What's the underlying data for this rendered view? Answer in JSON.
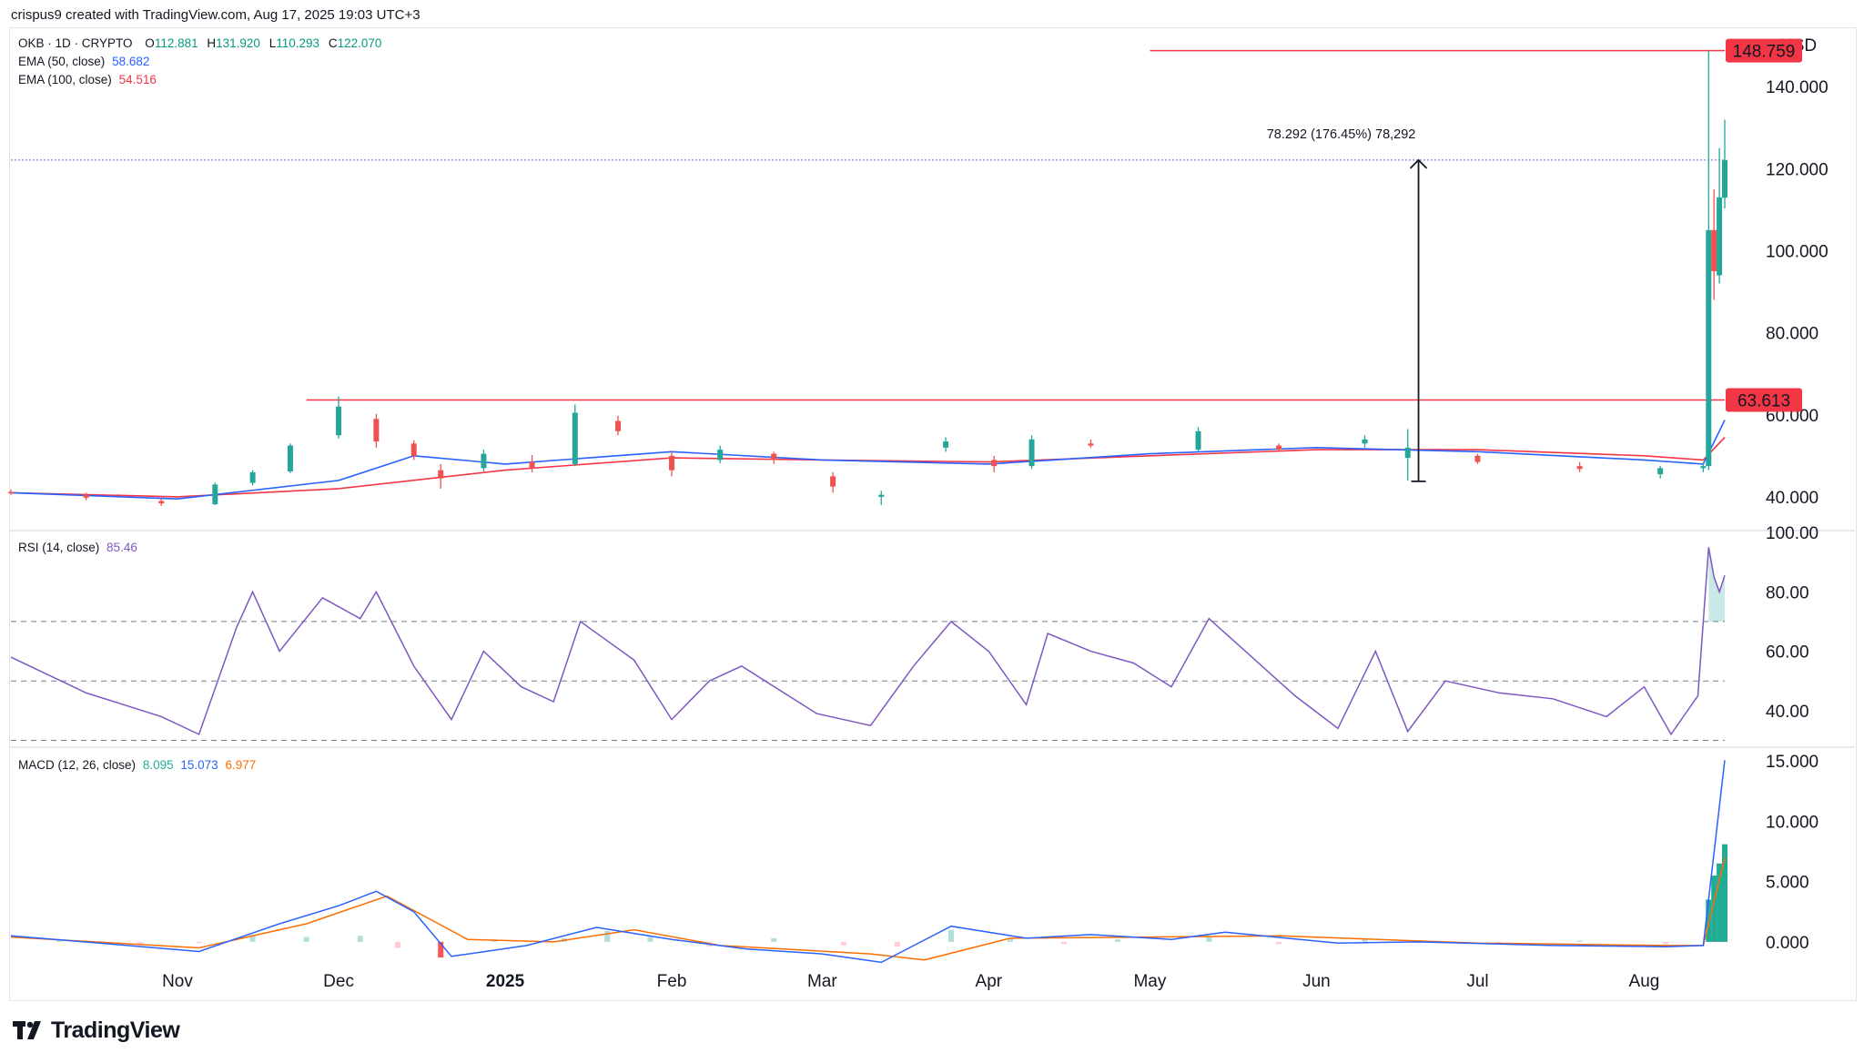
{
  "header": {
    "credit": "crispus9 created with TradingView.com, Aug 17, 2025 19:03 UTC+3"
  },
  "legend": {
    "symbol": "OKB · 1D · CRYPTO",
    "open_label": "O",
    "open": "112.881",
    "high_label": "H",
    "high": "131.920",
    "low_label": "L",
    "low": "110.293",
    "close_label": "C",
    "close": "122.070",
    "ema50_label": "EMA (50, close)",
    "ema50": "58.682",
    "ema100_label": "EMA (100, close)",
    "ema100": "54.516",
    "rsi_label": "RSI (14, close)",
    "rsi": "85.46",
    "macd_label": "MACD (12, 26, close)",
    "macd_hist": "8.095",
    "macd_line": "15.073",
    "macd_signal": "6.977"
  },
  "colors": {
    "up": "#26a69a",
    "down": "#ef5350",
    "ema50": "#2962ff",
    "ema100": "#f23645",
    "rsi": "#7e57c2",
    "macd_line": "#2962ff",
    "signal": "#ff6d00",
    "resistance": "#f23645",
    "badge": "#f23645"
  },
  "currency": "USD",
  "branding": "TradingView",
  "chart_data": [
    {
      "type": "candlestick",
      "title": "OKB · 1D · CRYPTO",
      "x_ticks": [
        "Nov",
        "Dec",
        "2025",
        "Feb",
        "Mar",
        "Apr",
        "May",
        "Jun",
        "Jul",
        "Aug"
      ],
      "y_ticks": [
        "40.000",
        "60.000",
        "80.000",
        "100.000",
        "120.000",
        "140.000"
      ],
      "ylim": [
        32,
        150
      ],
      "scale": "linear",
      "last_price": "122.070",
      "price_labels": [
        {
          "value": 148.759,
          "text": "148.759"
        },
        {
          "value": 63.613,
          "text": "63.613"
        }
      ],
      "horizontal_lines": [
        {
          "name": "resistance",
          "value": 63.613,
          "from": "Nov 25 2024"
        },
        {
          "name": "peak",
          "value": 148.759,
          "from": "May 1 2025"
        },
        {
          "name": "last-price",
          "value": 122.07,
          "style": "dotted"
        }
      ],
      "measure": {
        "text": "78.292 (176.45%) 78,292",
        "from_value": 43.78,
        "to_value": 122.07,
        "date": "Jun 20 2025"
      },
      "ohlc": [
        [
          "Oct 1 2024",
          41.2,
          41.8,
          40.5,
          41.0
        ],
        [
          "Oct 15 2024",
          40.5,
          41.0,
          39.2,
          39.8
        ],
        [
          "Oct 29 2024",
          39.0,
          39.6,
          37.8,
          38.4
        ],
        [
          "Nov 8 2024",
          38.2,
          43.5,
          38.0,
          43.0
        ],
        [
          "Nov 15 2024",
          43.4,
          46.5,
          42.8,
          46.0
        ],
        [
          "Nov 22 2024",
          46.2,
          53.0,
          45.8,
          52.5
        ],
        [
          "Dec 1 2024",
          55.0,
          64.5,
          54.2,
          62.0
        ],
        [
          "Dec 8 2024",
          59.0,
          60.2,
          52.0,
          53.5
        ],
        [
          "Dec 15 2024",
          53.0,
          53.8,
          49.0,
          50.0
        ],
        [
          "Dec 20 2024",
          46.5,
          48.0,
          42.0,
          44.5
        ],
        [
          "Dec 28 2024",
          47.0,
          51.5,
          46.2,
          50.5
        ],
        [
          "Jan 6 2025",
          48.5,
          50.2,
          46.0,
          47.0
        ],
        [
          "Jan 14 2025",
          48.0,
          62.5,
          47.5,
          60.5
        ],
        [
          "Jan 22 2025",
          58.5,
          59.8,
          55.0,
          56.0
        ],
        [
          "Feb 1 2025",
          50.0,
          51.0,
          45.0,
          46.5
        ],
        [
          "Feb 10 2025",
          49.0,
          52.5,
          48.2,
          51.5
        ],
        [
          "Feb 20 2025",
          50.5,
          51.0,
          48.0,
          49.0
        ],
        [
          "Mar 3 2025",
          45.0,
          46.0,
          41.0,
          42.5
        ],
        [
          "Mar 12 2025",
          40.0,
          41.5,
          38.0,
          40.5
        ],
        [
          "Mar 24 2025",
          52.0,
          54.5,
          51.0,
          53.5
        ],
        [
          "Apr 2 2025",
          49.0,
          50.0,
          46.0,
          47.5
        ],
        [
          "Apr 9 2025",
          47.5,
          55.0,
          46.8,
          54.0
        ],
        [
          "Apr 20 2025",
          53.0,
          54.0,
          52.0,
          52.5
        ],
        [
          "May 10 2025",
          51.5,
          57.0,
          51.0,
          56.0
        ],
        [
          "May 25 2025",
          52.5,
          53.0,
          51.0,
          51.5
        ],
        [
          "Jun 10 2025",
          53.0,
          55.0,
          52.0,
          54.0
        ],
        [
          "Jun 18 2025",
          49.5,
          56.5,
          44.0,
          52.0
        ],
        [
          "Jul 1 2025",
          50.0,
          50.5,
          48.0,
          48.5
        ],
        [
          "Jul 20 2025",
          47.5,
          48.5,
          46.0,
          46.8
        ],
        [
          "Aug 4 2025",
          45.5,
          47.5,
          44.5,
          47.0
        ],
        [
          "Aug 12 2025",
          47.0,
          48.5,
          46.0,
          47.5
        ],
        [
          "Aug 13 2025",
          47.5,
          148.8,
          46.5,
          105.0
        ],
        [
          "Aug 14 2025",
          105.0,
          115.0,
          88.0,
          95.0
        ],
        [
          "Aug 15 2025",
          94.0,
          125.0,
          92.0,
          113.0
        ],
        [
          "Aug 16 2025",
          112.9,
          131.9,
          110.3,
          122.1
        ]
      ],
      "series": [
        {
          "name": "EMA (50, close)",
          "values": [
            [
              "Oct 1 2024",
              41.0
            ],
            [
              "Nov 1 2024",
              39.5
            ],
            [
              "Dec 1 2024",
              44.0
            ],
            [
              "Dec 15 2024",
              50.0
            ],
            [
              "Jan 1 2025",
              48.0
            ],
            [
              "Feb 1 2025",
              51.0
            ],
            [
              "Mar 1 2025",
              49.0
            ],
            [
              "Apr 1 2025",
              48.0
            ],
            [
              "May 1 2025",
              50.5
            ],
            [
              "Jun 1 2025",
              52.0
            ],
            [
              "Jul 1 2025",
              51.0
            ],
            [
              "Aug 1 2025",
              49.0
            ],
            [
              "Aug 12 2025",
              48.0
            ],
            [
              "Aug 16 2025",
              58.7
            ]
          ]
        },
        {
          "name": "EMA (100, close)",
          "values": [
            [
              "Oct 1 2024",
              41.0
            ],
            [
              "Nov 1 2024",
              40.0
            ],
            [
              "Dec 1 2024",
              42.0
            ],
            [
              "Jan 1 2025",
              46.5
            ],
            [
              "Feb 1 2025",
              49.5
            ],
            [
              "Mar 1 2025",
              49.0
            ],
            [
              "Apr 1 2025",
              48.5
            ],
            [
              "May 1 2025",
              50.0
            ],
            [
              "Jun 1 2025",
              51.5
            ],
            [
              "Jul 1 2025",
              51.5
            ],
            [
              "Aug 1 2025",
              50.0
            ],
            [
              "Aug 12 2025",
              49.0
            ],
            [
              "Aug 16 2025",
              54.5
            ]
          ]
        }
      ]
    },
    {
      "type": "line",
      "title": "RSI (14, close)",
      "y_ticks": [
        "40.00",
        "60.00",
        "80.00",
        "100.00"
      ],
      "ylim": [
        28,
        100
      ],
      "bands": [
        70,
        50,
        30
      ],
      "series": [
        {
          "name": "RSI (14, close)",
          "values": [
            [
              "Oct 1 2024",
              58
            ],
            [
              "Oct 15 2024",
              46
            ],
            [
              "Oct 29 2024",
              38
            ],
            [
              "Nov 5 2024",
              32
            ],
            [
              "Nov 12 2024",
              68
            ],
            [
              "Nov 15 2024",
              80
            ],
            [
              "Nov 20 2024",
              60
            ],
            [
              "Nov 28 2024",
              78
            ],
            [
              "Dec 5 2024",
              71
            ],
            [
              "Dec 8 2024",
              80
            ],
            [
              "Dec 15 2024",
              55
            ],
            [
              "Dec 22 2024",
              37
            ],
            [
              "Dec 28 2024",
              60
            ],
            [
              "Jan 4 2025",
              48
            ],
            [
              "Jan 10 2025",
              43
            ],
            [
              "Jan 15 2025",
              70
            ],
            [
              "Jan 25 2025",
              57
            ],
            [
              "Feb 1 2025",
              37
            ],
            [
              "Feb 8 2025",
              50
            ],
            [
              "Feb 14 2025",
              55
            ],
            [
              "Feb 28 2025",
              39
            ],
            [
              "Mar 10 2025",
              35
            ],
            [
              "Mar 18 2025",
              55
            ],
            [
              "Mar 25 2025",
              70
            ],
            [
              "Apr 1 2025",
              60
            ],
            [
              "Apr 8 2025",
              42
            ],
            [
              "Apr 12 2025",
              66
            ],
            [
              "Apr 20 2025",
              60
            ],
            [
              "Apr 28 2025",
              56
            ],
            [
              "May 5 2025",
              48
            ],
            [
              "May 12 2025",
              71
            ],
            [
              "May 20 2025",
              58
            ],
            [
              "May 28 2025",
              45
            ],
            [
              "Jun 5 2025",
              34
            ],
            [
              "Jun 12 2025",
              60
            ],
            [
              "Jun 18 2025",
              33
            ],
            [
              "Jun 25 2025",
              50
            ],
            [
              "Jul 5 2025",
              46
            ],
            [
              "Jul 15 2025",
              44
            ],
            [
              "Jul 25 2025",
              38
            ],
            [
              "Aug 1 2025",
              48
            ],
            [
              "Aug 6 2025",
              32
            ],
            [
              "Aug 11 2025",
              45
            ],
            [
              "Aug 13 2025",
              95
            ],
            [
              "Aug 14 2025",
              85
            ],
            [
              "Aug 15 2025",
              80
            ],
            [
              "Aug 16 2025",
              85.5
            ]
          ]
        }
      ]
    },
    {
      "type": "bar",
      "title": "MACD (12, 26, close)",
      "y_ticks": [
        "0.000",
        "5.000",
        "10.000",
        "15.000"
      ],
      "ylim": [
        -2.5,
        16
      ],
      "series": [
        {
          "name": "Histogram",
          "values": [
            [
              "Oct 10 2024",
              0.1
            ],
            [
              "Oct 25 2024",
              -0.2
            ],
            [
              "Nov 5 2024",
              -0.1
            ],
            [
              "Nov 15 2024",
              0.6
            ],
            [
              "Nov 25 2024",
              0.4
            ],
            [
              "Dec 5 2024",
              0.5
            ],
            [
              "Dec 12 2024",
              -0.5
            ],
            [
              "Dec 20 2024",
              -1.3
            ],
            [
              "Dec 30 2024",
              0.2
            ],
            [
              "Jan 12 2025",
              0.3
            ],
            [
              "Jan 20 2025",
              0.9
            ],
            [
              "Jan 28 2025",
              0.4
            ],
            [
              "Feb 8 2025",
              -0.4
            ],
            [
              "Feb 20 2025",
              0.3
            ],
            [
              "Mar 5 2025",
              -0.3
            ],
            [
              "Mar 15 2025",
              -0.4
            ],
            [
              "Mar 25 2025",
              1.0
            ],
            [
              "Apr 5 2025",
              0.3
            ],
            [
              "Apr 15 2025",
              -0.2
            ],
            [
              "Apr 25 2025",
              0.2
            ],
            [
              "May 12 2025",
              0.4
            ],
            [
              "May 25 2025",
              -0.2
            ],
            [
              "Jun 10 2025",
              0.3
            ],
            [
              "Jun 20 2025",
              -0.1
            ],
            [
              "Jul 5 2025",
              -0.1
            ],
            [
              "Jul 20 2025",
              0.1
            ],
            [
              "Aug 5 2025",
              -0.2
            ],
            [
              "Aug 13 2025",
              3.5
            ],
            [
              "Aug 14 2025",
              5.5
            ],
            [
              "Aug 15 2025",
              6.5
            ],
            [
              "Aug 16 2025",
              8.1
            ]
          ]
        },
        {
          "name": "MACD",
          "values": [
            [
              "Oct 1 2024",
              0.5
            ],
            [
              "Oct 20 2024",
              -0.2
            ],
            [
              "Nov 5 2024",
              -0.8
            ],
            [
              "Nov 20 2024",
              1.5
            ],
            [
              "Dec 1 2024",
              3.0
            ],
            [
              "Dec 8 2024",
              4.2
            ],
            [
              "Dec 15 2024",
              2.5
            ],
            [
              "Dec 22 2024",
              -1.2
            ],
            [
              "Jan 5 2025",
              -0.3
            ],
            [
              "Jan 18 2025",
              1.2
            ],
            [
              "Feb 1 2025",
              0.2
            ],
            [
              "Feb 15 2025",
              -0.6
            ],
            [
              "Mar 1 2025",
              -1.0
            ],
            [
              "Mar 12 2025",
              -1.7
            ],
            [
              "Mar 25 2025",
              1.3
            ],
            [
              "Apr 8 2025",
              0.3
            ],
            [
              "Apr 20 2025",
              0.6
            ],
            [
              "May 5 2025",
              0.2
            ],
            [
              "May 15 2025",
              0.8
            ],
            [
              "Jun 5 2025",
              -0.1
            ],
            [
              "Jun 20 2025",
              0.0
            ],
            [
              "Jul 15 2025",
              -0.3
            ],
            [
              "Aug 5 2025",
              -0.4
            ],
            [
              "Aug 12 2025",
              -0.3
            ],
            [
              "Aug 16 2025",
              15.07
            ]
          ]
        },
        {
          "name": "Signal",
          "values": [
            [
              "Oct 1 2024",
              0.4
            ],
            [
              "Nov 5 2024",
              -0.5
            ],
            [
              "Nov 25 2024",
              1.5
            ],
            [
              "Dec 10 2024",
              3.8
            ],
            [
              "Dec 25 2024",
              0.2
            ],
            [
              "Jan 10 2025",
              0.0
            ],
            [
              "Jan 25 2025",
              1.0
            ],
            [
              "Feb 10 2025",
              -0.3
            ],
            [
              "Mar 10 2025",
              -1.0
            ],
            [
              "Mar 20 2025",
              -1.5
            ],
            [
              "Apr 5 2025",
              0.3
            ],
            [
              "May 1 2025",
              0.4
            ],
            [
              "May 25 2025",
              0.5
            ],
            [
              "Jul 1 2025",
              -0.1
            ],
            [
              "Aug 5 2025",
              -0.3
            ],
            [
              "Aug 12 2025",
              -0.3
            ],
            [
              "Aug 16 2025",
              6.98
            ]
          ]
        }
      ]
    }
  ]
}
